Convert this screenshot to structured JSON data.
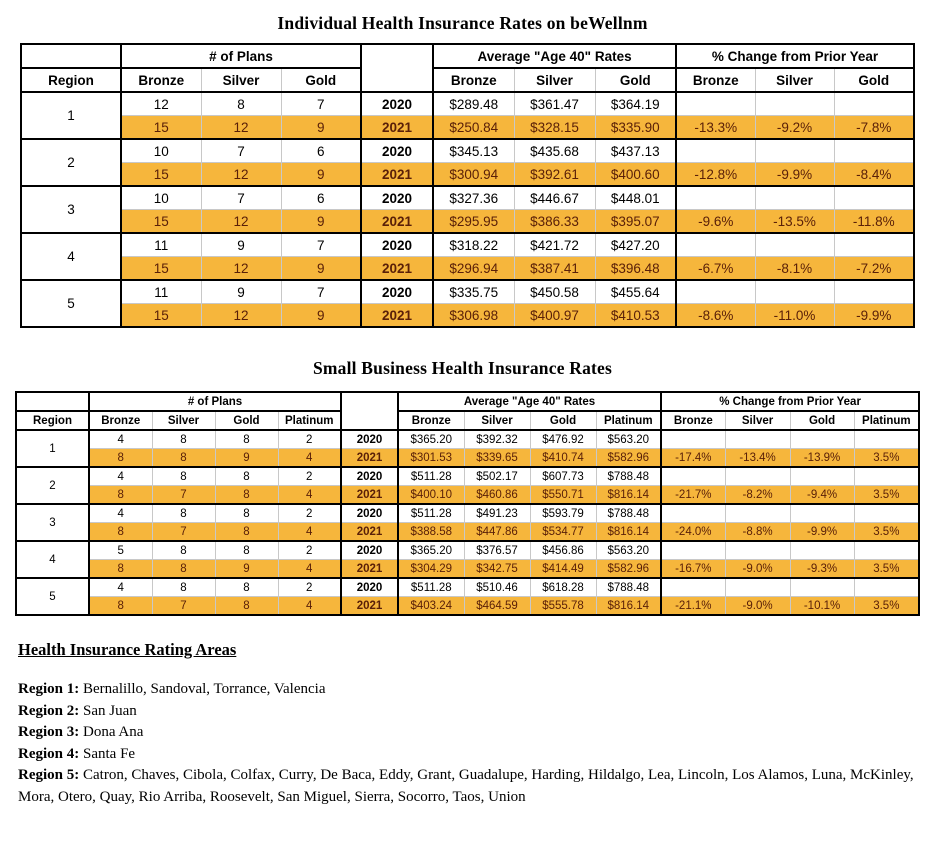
{
  "titles": {
    "individual": "Individual Health Insurance Rates on beWellnm",
    "small_business": "Small Business Health Insurance Rates"
  },
  "colors": {
    "highlight": "#F6B63C",
    "highlight_text": "#5A2008",
    "grid_light": "#C8C8C8",
    "border_dark": "#000000"
  },
  "individual_table": {
    "group_headers": {
      "plans": "# of Plans",
      "rates": "Average \"Age 40\" Rates",
      "change": "% Change from Prior Year"
    },
    "region_header": "Region",
    "metals": [
      "Bronze",
      "Silver",
      "Gold"
    ],
    "regions": [
      {
        "region": "1",
        "rows": [
          {
            "year": "2020",
            "plans": [
              "12",
              "8",
              "7"
            ],
            "rates": [
              "$289.48",
              "$361.47",
              "$364.19"
            ],
            "change": [
              "",
              "",
              ""
            ]
          },
          {
            "year": "2021",
            "plans": [
              "15",
              "12",
              "9"
            ],
            "rates": [
              "$250.84",
              "$328.15",
              "$335.90"
            ],
            "change": [
              "-13.3%",
              "-9.2%",
              "-7.8%"
            ]
          }
        ]
      },
      {
        "region": "2",
        "rows": [
          {
            "year": "2020",
            "plans": [
              "10",
              "7",
              "6"
            ],
            "rates": [
              "$345.13",
              "$435.68",
              "$437.13"
            ],
            "change": [
              "",
              "",
              ""
            ]
          },
          {
            "year": "2021",
            "plans": [
              "15",
              "12",
              "9"
            ],
            "rates": [
              "$300.94",
              "$392.61",
              "$400.60"
            ],
            "change": [
              "-12.8%",
              "-9.9%",
              "-8.4%"
            ]
          }
        ]
      },
      {
        "region": "3",
        "rows": [
          {
            "year": "2020",
            "plans": [
              "10",
              "7",
              "6"
            ],
            "rates": [
              "$327.36",
              "$446.67",
              "$448.01"
            ],
            "change": [
              "",
              "",
              ""
            ]
          },
          {
            "year": "2021",
            "plans": [
              "15",
              "12",
              "9"
            ],
            "rates": [
              "$295.95",
              "$386.33",
              "$395.07"
            ],
            "change": [
              "-9.6%",
              "-13.5%",
              "-11.8%"
            ]
          }
        ]
      },
      {
        "region": "4",
        "rows": [
          {
            "year": "2020",
            "plans": [
              "11",
              "9",
              "7"
            ],
            "rates": [
              "$318.22",
              "$421.72",
              "$427.20"
            ],
            "change": [
              "",
              "",
              ""
            ]
          },
          {
            "year": "2021",
            "plans": [
              "15",
              "12",
              "9"
            ],
            "rates": [
              "$296.94",
              "$387.41",
              "$396.48"
            ],
            "change": [
              "-6.7%",
              "-8.1%",
              "-7.2%"
            ]
          }
        ]
      },
      {
        "region": "5",
        "rows": [
          {
            "year": "2020",
            "plans": [
              "11",
              "9",
              "7"
            ],
            "rates": [
              "$335.75",
              "$450.58",
              "$455.64"
            ],
            "change": [
              "",
              "",
              ""
            ]
          },
          {
            "year": "2021",
            "plans": [
              "15",
              "12",
              "9"
            ],
            "rates": [
              "$306.98",
              "$400.97",
              "$410.53"
            ],
            "change": [
              "-8.6%",
              "-11.0%",
              "-9.9%"
            ]
          }
        ]
      }
    ]
  },
  "small_business_table": {
    "group_headers": {
      "plans": "# of Plans",
      "rates": "Average \"Age 40\" Rates",
      "change": "% Change from Prior Year"
    },
    "region_header": "Region",
    "metals": [
      "Bronze",
      "Silver",
      "Gold",
      "Platinum"
    ],
    "regions": [
      {
        "region": "1",
        "rows": [
          {
            "year": "2020",
            "plans": [
              "4",
              "8",
              "8",
              "2"
            ],
            "rates": [
              "$365.20",
              "$392.32",
              "$476.92",
              "$563.20"
            ],
            "change": [
              "",
              "",
              "",
              ""
            ]
          },
          {
            "year": "2021",
            "plans": [
              "8",
              "8",
              "9",
              "4"
            ],
            "rates": [
              "$301.53",
              "$339.65",
              "$410.74",
              "$582.96"
            ],
            "change": [
              "-17.4%",
              "-13.4%",
              "-13.9%",
              "3.5%"
            ]
          }
        ]
      },
      {
        "region": "2",
        "rows": [
          {
            "year": "2020",
            "plans": [
              "4",
              "8",
              "8",
              "2"
            ],
            "rates": [
              "$511.28",
              "$502.17",
              "$607.73",
              "$788.48"
            ],
            "change": [
              "",
              "",
              "",
              ""
            ]
          },
          {
            "year": "2021",
            "plans": [
              "8",
              "7",
              "8",
              "4"
            ],
            "rates": [
              "$400.10",
              "$460.86",
              "$550.71",
              "$816.14"
            ],
            "change": [
              "-21.7%",
              "-8.2%",
              "-9.4%",
              "3.5%"
            ]
          }
        ]
      },
      {
        "region": "3",
        "rows": [
          {
            "year": "2020",
            "plans": [
              "4",
              "8",
              "8",
              "2"
            ],
            "rates": [
              "$511.28",
              "$491.23",
              "$593.79",
              "$788.48"
            ],
            "change": [
              "",
              "",
              "",
              ""
            ]
          },
          {
            "year": "2021",
            "plans": [
              "8",
              "7",
              "8",
              "4"
            ],
            "rates": [
              "$388.58",
              "$447.86",
              "$534.77",
              "$816.14"
            ],
            "change": [
              "-24.0%",
              "-8.8%",
              "-9.9%",
              "3.5%"
            ]
          }
        ]
      },
      {
        "region": "4",
        "rows": [
          {
            "year": "2020",
            "plans": [
              "5",
              "8",
              "8",
              "2"
            ],
            "rates": [
              "$365.20",
              "$376.57",
              "$456.86",
              "$563.20"
            ],
            "change": [
              "",
              "",
              "",
              ""
            ]
          },
          {
            "year": "2021",
            "plans": [
              "8",
              "8",
              "9",
              "4"
            ],
            "rates": [
              "$304.29",
              "$342.75",
              "$414.49",
              "$582.96"
            ],
            "change": [
              "-16.7%",
              "-9.0%",
              "-9.3%",
              "3.5%"
            ]
          }
        ]
      },
      {
        "region": "5",
        "rows": [
          {
            "year": "2020",
            "plans": [
              "4",
              "8",
              "8",
              "2"
            ],
            "rates": [
              "$511.28",
              "$510.46",
              "$618.28",
              "$788.48"
            ],
            "change": [
              "",
              "",
              "",
              ""
            ]
          },
          {
            "year": "2021",
            "plans": [
              "8",
              "7",
              "8",
              "4"
            ],
            "rates": [
              "$403.24",
              "$464.59",
              "$555.78",
              "$816.14"
            ],
            "change": [
              "-21.1%",
              "-9.0%",
              "-10.1%",
              "3.5%"
            ]
          }
        ]
      }
    ]
  },
  "footer": {
    "heading": "Health Insurance Rating Areas",
    "areas": [
      {
        "label": "Region 1:",
        "counties": "Bernalillo, Sandoval, Torrance, Valencia"
      },
      {
        "label": "Region 2:",
        "counties": "San Juan"
      },
      {
        "label": "Region 3:",
        "counties": "Dona Ana"
      },
      {
        "label": "Region 4:",
        "counties": "Santa Fe"
      },
      {
        "label": "Region 5:",
        "counties": "Catron, Chaves, Cibola, Colfax, Curry, De Baca, Eddy, Grant, Guadalupe, Harding, Hildalgo, Lea, Lincoln, Los Alamos, Luna, McKinley, Mora, Otero, Quay, Rio Arriba, Roosevelt, San Miguel, Sierra, Socorro, Taos, Union"
      }
    ]
  }
}
